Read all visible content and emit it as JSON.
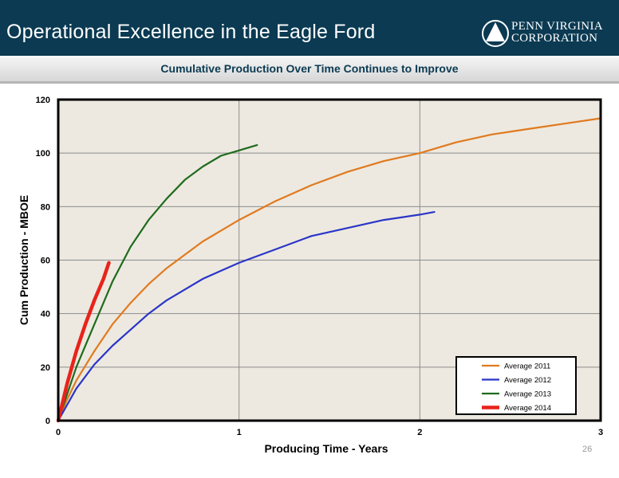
{
  "header": {
    "title": "Operational Excellence in the Eagle Ford",
    "logo_line1": "PENN VIRGINIA",
    "logo_line2": "CORPORATION"
  },
  "subtitle": "Cumulative Production Over Time Continues to Improve",
  "page_number": "26",
  "colors": {
    "header_bg": "#0b3a52",
    "plot_bg": "#ede9e0",
    "avg2011": "#e07a1f",
    "avg2012": "#2a35c8",
    "avg2013": "#1e6b1e",
    "avg2014": "#e8231b"
  },
  "chart_data": {
    "type": "line",
    "xlabel": "Producing Time - Years",
    "ylabel": "Cum Production - MBOE",
    "xlim": [
      0,
      3
    ],
    "ylim": [
      0,
      120
    ],
    "x_ticks": [
      "0",
      "1",
      "2",
      "3"
    ],
    "y_ticks": [
      "0",
      "20",
      "40",
      "60",
      "80",
      "100",
      "120"
    ],
    "grid": true,
    "legend_position": "bottom-right",
    "series": [
      {
        "name": "Average 2011",
        "color": "#e07a1f",
        "points": [
          [
            0,
            0
          ],
          [
            0.05,
            8
          ],
          [
            0.1,
            15
          ],
          [
            0.2,
            26
          ],
          [
            0.3,
            36
          ],
          [
            0.4,
            44
          ],
          [
            0.5,
            51
          ],
          [
            0.6,
            57
          ],
          [
            0.7,
            62
          ],
          [
            0.8,
            67
          ],
          [
            0.9,
            71
          ],
          [
            1.0,
            75
          ],
          [
            1.2,
            82
          ],
          [
            1.4,
            88
          ],
          [
            1.6,
            93
          ],
          [
            1.8,
            97
          ],
          [
            2.0,
            100
          ],
          [
            2.2,
            104
          ],
          [
            2.4,
            107
          ],
          [
            2.6,
            109
          ],
          [
            2.8,
            111
          ],
          [
            3.0,
            113
          ]
        ]
      },
      {
        "name": "Average 2012",
        "color": "#2a35c8",
        "points": [
          [
            0,
            0
          ],
          [
            0.05,
            6
          ],
          [
            0.1,
            12
          ],
          [
            0.2,
            21
          ],
          [
            0.3,
            28
          ],
          [
            0.4,
            34
          ],
          [
            0.5,
            40
          ],
          [
            0.6,
            45
          ],
          [
            0.7,
            49
          ],
          [
            0.8,
            53
          ],
          [
            0.9,
            56
          ],
          [
            1.0,
            59
          ],
          [
            1.2,
            64
          ],
          [
            1.4,
            69
          ],
          [
            1.6,
            72
          ],
          [
            1.8,
            75
          ],
          [
            2.0,
            77
          ],
          [
            2.08,
            78
          ]
        ]
      },
      {
        "name": "Average 2013",
        "color": "#1e6b1e",
        "points": [
          [
            0,
            0
          ],
          [
            0.05,
            10
          ],
          [
            0.1,
            20
          ],
          [
            0.2,
            36
          ],
          [
            0.3,
            52
          ],
          [
            0.4,
            65
          ],
          [
            0.5,
            75
          ],
          [
            0.6,
            83
          ],
          [
            0.7,
            90
          ],
          [
            0.8,
            95
          ],
          [
            0.9,
            99
          ],
          [
            1.0,
            101
          ],
          [
            1.1,
            103
          ]
        ]
      },
      {
        "name": "Average 2014",
        "color": "#e8231b",
        "points": [
          [
            0,
            0
          ],
          [
            0.05,
            14
          ],
          [
            0.1,
            26
          ],
          [
            0.15,
            36
          ],
          [
            0.2,
            45
          ],
          [
            0.25,
            53
          ],
          [
            0.28,
            59
          ]
        ]
      }
    ]
  }
}
